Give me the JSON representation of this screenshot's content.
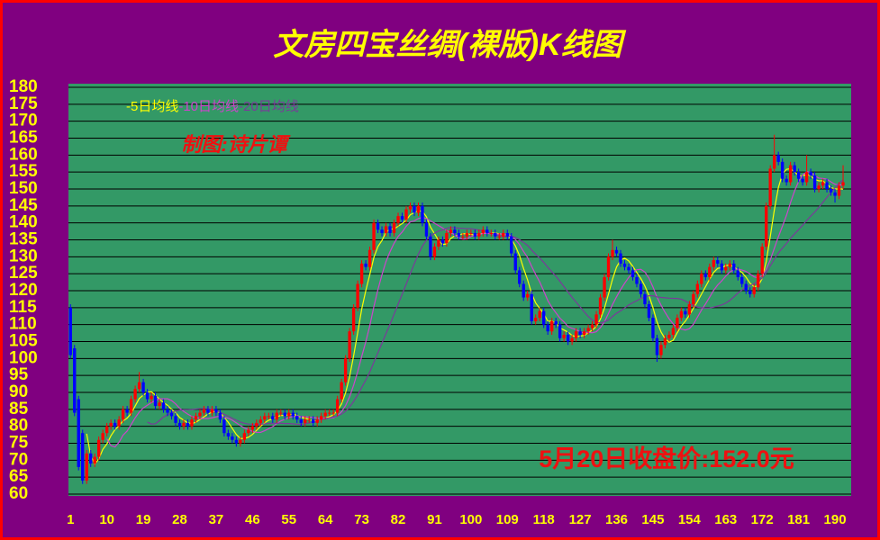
{
  "chart_data": {
    "type": "candlestick",
    "title": "文房四宝丝绸(裸版)K线图",
    "credit": "制图:诗片谭",
    "annotation": "5月20日收盘价:152.0元",
    "up_color": "#ff0000",
    "down_color": "#0000ff",
    "grid": true,
    "ma": [
      {
        "name": "-5日均线",
        "period": 5,
        "color": "#ffff00"
      },
      {
        "name": "-10日均线",
        "period": 10,
        "color": "#cc44cc"
      },
      {
        "name": "-20日均线",
        "period": 20,
        "color": "#7a3a9a"
      }
    ],
    "xlim": [
      0.5,
      194
    ],
    "xticks": [
      1,
      10,
      19,
      28,
      37,
      46,
      55,
      64,
      73,
      82,
      91,
      100,
      109,
      118,
      127,
      136,
      145,
      154,
      163,
      172,
      181,
      190
    ],
    "ylim": [
      60,
      180
    ],
    "yticks": [
      60,
      65,
      70,
      75,
      80,
      85,
      90,
      95,
      100,
      105,
      110,
      115,
      120,
      125,
      130,
      135,
      140,
      145,
      150,
      155,
      160,
      165,
      170,
      175,
      180
    ],
    "x": [
      1,
      2,
      3,
      4,
      5,
      6,
      7,
      8,
      9,
      10,
      11,
      12,
      13,
      14,
      15,
      16,
      17,
      18,
      19,
      20,
      21,
      22,
      23,
      24,
      25,
      26,
      27,
      28,
      29,
      30,
      31,
      32,
      33,
      34,
      35,
      36,
      37,
      38,
      39,
      40,
      41,
      42,
      43,
      44,
      45,
      46,
      47,
      48,
      49,
      50,
      51,
      52,
      53,
      54,
      55,
      56,
      57,
      58,
      59,
      60,
      61,
      62,
      63,
      64,
      65,
      66,
      67,
      68,
      69,
      70,
      71,
      72,
      73,
      74,
      75,
      76,
      77,
      78,
      79,
      80,
      81,
      82,
      83,
      84,
      85,
      86,
      87,
      88,
      89,
      90,
      91,
      92,
      93,
      94,
      95,
      96,
      97,
      98,
      99,
      100,
      101,
      102,
      103,
      104,
      105,
      106,
      107,
      108,
      109,
      110,
      111,
      112,
      113,
      114,
      115,
      116,
      117,
      118,
      119,
      120,
      121,
      122,
      123,
      124,
      125,
      126,
      127,
      128,
      129,
      130,
      131,
      132,
      133,
      134,
      135,
      136,
      137,
      138,
      139,
      140,
      141,
      142,
      143,
      144,
      145,
      146,
      147,
      148,
      149,
      150,
      151,
      152,
      153,
      154,
      155,
      156,
      157,
      158,
      159,
      160,
      161,
      162,
      163,
      164,
      165,
      166,
      167,
      168,
      169,
      170,
      171,
      172,
      173,
      174,
      175,
      176,
      177,
      178,
      179,
      180,
      181,
      182,
      183,
      184,
      185,
      186,
      187,
      188,
      189,
      190,
      191,
      192
    ],
    "open": [
      115,
      103,
      88,
      78,
      64,
      72,
      69,
      71,
      76,
      78,
      80,
      81,
      80,
      82,
      85,
      84,
      88,
      91,
      93,
      90,
      88,
      89,
      86,
      87,
      85,
      84,
      83,
      81,
      80,
      81,
      80,
      82,
      83,
      84,
      85,
      84,
      85,
      84,
      82,
      78,
      77,
      76,
      75,
      76,
      78,
      79,
      80,
      81,
      82,
      83,
      83,
      82,
      84,
      84,
      83,
      84,
      83,
      82,
      81,
      82,
      82,
      81,
      82,
      83,
      84,
      84,
      84,
      88,
      93,
      100,
      108,
      115,
      122,
      128,
      127,
      132,
      140,
      138,
      137,
      139,
      137,
      140,
      142,
      141,
      144,
      145,
      143,
      145,
      140,
      136,
      130,
      133,
      135,
      134,
      137,
      138,
      137,
      136,
      136,
      137,
      137,
      136,
      137,
      138,
      137,
      137,
      136,
      136,
      137,
      136,
      131,
      126,
      122,
      118,
      119,
      111,
      112,
      114,
      110,
      108,
      111,
      110,
      106,
      107,
      105,
      106,
      108,
      107,
      108,
      109,
      110,
      113,
      118,
      124,
      130,
      132,
      131,
      128,
      127,
      126,
      124,
      122,
      119,
      116,
      112,
      106,
      101,
      104,
      106,
      107,
      109,
      112,
      114,
      113,
      116,
      119,
      122,
      125,
      124,
      127,
      129,
      128,
      126,
      127,
      128,
      126,
      124,
      122,
      120,
      119,
      121,
      125,
      133,
      145,
      156,
      160,
      158,
      153,
      152,
      157,
      155,
      153,
      152,
      155,
      154,
      150,
      151,
      152,
      150,
      149,
      148,
      151
    ],
    "high": [
      116,
      104,
      89,
      79,
      73,
      73,
      72,
      77,
      79,
      81,
      82,
      82,
      83,
      86,
      86,
      89,
      92,
      96,
      94,
      91,
      90,
      90,
      88,
      88,
      86,
      85,
      84,
      82,
      82,
      82,
      83,
      84,
      85,
      86,
      86,
      86,
      86,
      85,
      83,
      79,
      78,
      77,
      77,
      79,
      80,
      81,
      82,
      83,
      84,
      84,
      84,
      85,
      85,
      85,
      85,
      85,
      84,
      83,
      83,
      83,
      83,
      83,
      84,
      85,
      85,
      85,
      89,
      94,
      101,
      109,
      116,
      123,
      129,
      129,
      133,
      141,
      141,
      139,
      140,
      140,
      141,
      143,
      143,
      145,
      146,
      146,
      146,
      146,
      141,
      137,
      134,
      136,
      136,
      138,
      139,
      139,
      138,
      137,
      138,
      138,
      138,
      138,
      139,
      139,
      138,
      138,
      137,
      138,
      138,
      137,
      132,
      127,
      123,
      120,
      120,
      113,
      115,
      115,
      111,
      112,
      112,
      111,
      108,
      108,
      107,
      109,
      109,
      109,
      110,
      111,
      114,
      119,
      125,
      131,
      135,
      133,
      132,
      129,
      128,
      127,
      125,
      123,
      120,
      117,
      113,
      107,
      105,
      107,
      108,
      110,
      113,
      115,
      115,
      117,
      120,
      123,
      126,
      126,
      128,
      130,
      130,
      129,
      128,
      129,
      129,
      127,
      125,
      123,
      121,
      122,
      126,
      134,
      146,
      157,
      166,
      161,
      159,
      154,
      158,
      158,
      156,
      154,
      160,
      156,
      155,
      152,
      153,
      153,
      151,
      150,
      152,
      157
    ],
    "low": [
      100,
      83,
      67,
      63,
      63,
      68,
      68,
      70,
      75,
      77,
      79,
      79,
      79,
      81,
      83,
      83,
      87,
      90,
      89,
      87,
      87,
      85,
      85,
      84,
      83,
      82,
      80,
      79,
      79,
      79,
      79,
      81,
      82,
      83,
      83,
      83,
      83,
      81,
      77,
      76,
      75,
      74,
      74,
      75,
      77,
      78,
      79,
      80,
      81,
      82,
      81,
      81,
      83,
      82,
      82,
      82,
      81,
      80,
      80,
      81,
      80,
      80,
      81,
      82,
      83,
      83,
      83,
      87,
      92,
      99,
      107,
      114,
      121,
      126,
      126,
      131,
      137,
      136,
      136,
      136,
      136,
      139,
      140,
      140,
      143,
      142,
      142,
      139,
      135,
      129,
      129,
      132,
      133,
      133,
      136,
      136,
      135,
      135,
      135,
      136,
      135,
      135,
      136,
      136,
      136,
      135,
      135,
      135,
      135,
      130,
      125,
      121,
      117,
      117,
      110,
      110,
      111,
      109,
      107,
      107,
      109,
      105,
      105,
      104,
      104,
      105,
      106,
      106,
      107,
      108,
      109,
      112,
      117,
      123,
      129,
      130,
      127,
      126,
      125,
      123,
      121,
      118,
      115,
      111,
      105,
      99,
      100,
      103,
      105,
      106,
      108,
      111,
      112,
      112,
      115,
      118,
      121,
      123,
      123,
      126,
      127,
      125,
      125,
      126,
      125,
      123,
      121,
      119,
      118,
      118,
      120,
      124,
      132,
      144,
      155,
      157,
      152,
      151,
      151,
      154,
      152,
      151,
      151,
      153,
      149,
      149,
      150,
      149,
      148,
      146,
      147,
      150
    ],
    "close": [
      101,
      84,
      68,
      64,
      72,
      69,
      71,
      76,
      78,
      80,
      81,
      80,
      82,
      85,
      84,
      88,
      91,
      93,
      90,
      88,
      89,
      86,
      87,
      85,
      84,
      83,
      81,
      80,
      81,
      80,
      82,
      83,
      84,
      85,
      84,
      85,
      84,
      82,
      78,
      77,
      76,
      75,
      76,
      78,
      79,
      80,
      81,
      82,
      83,
      83,
      82,
      84,
      84,
      83,
      84,
      83,
      82,
      81,
      82,
      82,
      81,
      82,
      83,
      84,
      84,
      84,
      88,
      93,
      100,
      108,
      115,
      122,
      128,
      127,
      132,
      140,
      138,
      137,
      139,
      137,
      140,
      142,
      141,
      144,
      145,
      143,
      145,
      140,
      136,
      130,
      133,
      135,
      134,
      137,
      138,
      137,
      136,
      136,
      137,
      137,
      136,
      137,
      138,
      137,
      137,
      136,
      136,
      137,
      136,
      131,
      126,
      122,
      118,
      119,
      111,
      112,
      114,
      110,
      108,
      111,
      110,
      106,
      107,
      105,
      106,
      108,
      107,
      108,
      109,
      110,
      113,
      118,
      124,
      130,
      132,
      131,
      128,
      127,
      126,
      124,
      122,
      119,
      116,
      112,
      106,
      101,
      104,
      106,
      107,
      109,
      112,
      114,
      113,
      116,
      119,
      122,
      125,
      124,
      127,
      129,
      128,
      126,
      127,
      128,
      126,
      124,
      122,
      120,
      119,
      121,
      125,
      133,
      145,
      156,
      160,
      158,
      153,
      152,
      157,
      155,
      153,
      152,
      155,
      154,
      150,
      151,
      152,
      150,
      149,
      148,
      151,
      152
    ]
  }
}
